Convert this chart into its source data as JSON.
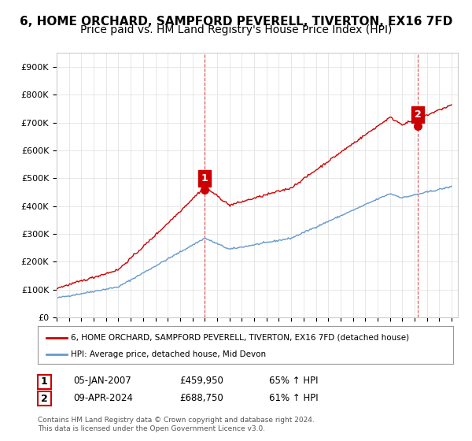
{
  "title": "6, HOME ORCHARD, SAMPFORD PEVERELL, TIVERTON, EX16 7FD",
  "subtitle": "Price paid vs. HM Land Registry's House Price Index (HPI)",
  "xlabel": "",
  "ylabel": "",
  "ylim": [
    0,
    950000
  ],
  "yticks": [
    0,
    100000,
    200000,
    300000,
    400000,
    500000,
    600000,
    700000,
    800000,
    900000
  ],
  "ytick_labels": [
    "£0",
    "£100K",
    "£200K",
    "£300K",
    "£400K",
    "£500K",
    "£600K",
    "£700K",
    "£800K",
    "£900K"
  ],
  "xlim_start": 1995.0,
  "xlim_end": 2027.5,
  "sale1_date": 2007.0,
  "sale1_price": 459950,
  "sale1_label": "1",
  "sale2_date": 2024.25,
  "sale2_price": 688750,
  "sale2_label": "2",
  "red_line_color": "#cc0000",
  "blue_line_color": "#6699cc",
  "sale_dot_color": "#cc0000",
  "annotation_box_color": "#cc0000",
  "legend_label_red": "6, HOME ORCHARD, SAMPFORD PEVERELL, TIVERTON, EX16 7FD (detached house)",
  "legend_label_blue": "HPI: Average price, detached house, Mid Devon",
  "info1_label": "1",
  "info1_date": "05-JAN-2007",
  "info1_price": "£459,950",
  "info1_hpi": "65% ↑ HPI",
  "info2_label": "2",
  "info2_date": "09-APR-2024",
  "info2_price": "£688,750",
  "info2_hpi": "61% ↑ HPI",
  "footer": "Contains HM Land Registry data © Crown copyright and database right 2024.\nThis data is licensed under the Open Government Licence v3.0.",
  "background_color": "#ffffff",
  "grid_color": "#dddddd",
  "title_fontsize": 11,
  "subtitle_fontsize": 10
}
